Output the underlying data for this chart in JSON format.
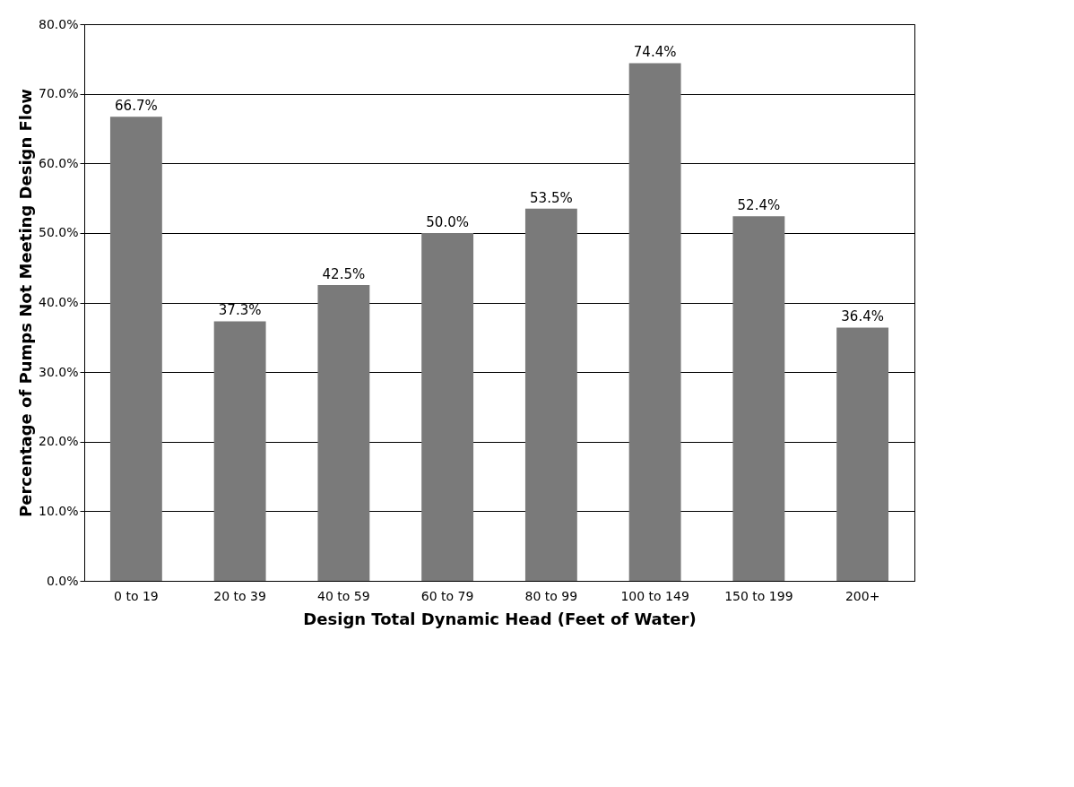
{
  "chart_data": {
    "type": "bar",
    "xlabel": "Design Total Dynamic Head (Feet of Water)",
    "ylabel": "Percentage of Pumps Not Meeting Design Flow",
    "categories": [
      "0 to 19",
      "20 to 39",
      "40 to 59",
      "60 to 79",
      "80 to 99",
      "100 to 149",
      "150 to 199",
      "200+"
    ],
    "values": [
      66.7,
      37.3,
      42.5,
      50.0,
      53.5,
      74.4,
      52.4,
      36.4
    ],
    "value_labels": [
      "66.7%",
      "37.3%",
      "42.5%",
      "50.0%",
      "53.5%",
      "74.4%",
      "52.4%",
      "36.4%"
    ],
    "color": "#7a7a7a",
    "ylim": [
      0,
      80
    ],
    "yticks": [
      {
        "value": 0,
        "label": "0.0%"
      },
      {
        "value": 10,
        "label": "10.0%"
      },
      {
        "value": 20,
        "label": "20.0%"
      },
      {
        "value": 30,
        "label": "30.0%"
      },
      {
        "value": 40,
        "label": "40.0%"
      },
      {
        "value": 50,
        "label": "50.0%"
      },
      {
        "value": 60,
        "label": "60.0%"
      },
      {
        "value": 70,
        "label": "70.0%"
      },
      {
        "value": 80,
        "label": "80.0%"
      }
    ],
    "grid": "y"
  }
}
